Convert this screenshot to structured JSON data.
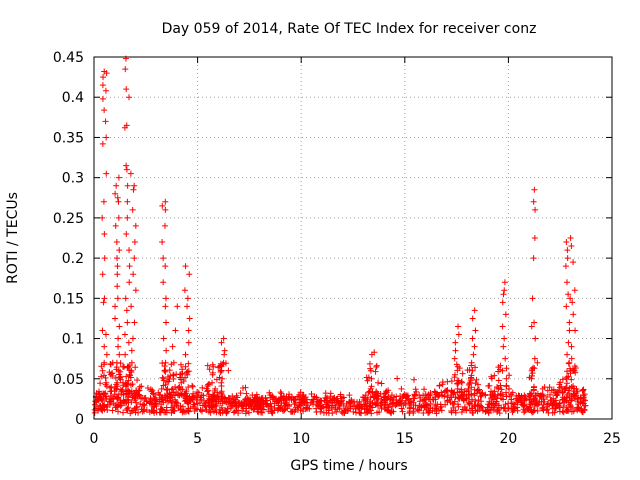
{
  "chart_data": {
    "type": "scatter",
    "title": "Day 059 of 2014, Rate Of TEC Index for receiver conz",
    "xlabel": "GPS time / hours",
    "ylabel": "ROTI / TECUs",
    "xlim": [
      0,
      25
    ],
    "ylim": [
      0,
      0.45
    ],
    "xticks": [
      "0",
      "5",
      "10",
      "15",
      "20",
      "25"
    ],
    "yticks": [
      "0",
      "0.05",
      "0.1",
      "0.15",
      "0.2",
      "0.25",
      "0.3",
      "0.35",
      "0.4",
      "0.45"
    ],
    "grid": true,
    "marker": "+",
    "color": "#ff0000",
    "hours_min": 0.0,
    "hours_max": 23.8,
    "baseline_profile": [
      [
        0.0,
        0.018
      ],
      [
        0.5,
        0.028
      ],
      [
        1.0,
        0.03
      ],
      [
        1.5,
        0.03
      ],
      [
        2.0,
        0.024
      ],
      [
        3.0,
        0.02
      ],
      [
        4.0,
        0.022
      ],
      [
        5.0,
        0.02
      ],
      [
        6.0,
        0.02
      ],
      [
        7.0,
        0.017
      ],
      [
        8.0,
        0.016
      ],
      [
        9.0,
        0.018
      ],
      [
        10.0,
        0.018
      ],
      [
        11.0,
        0.017
      ],
      [
        12.0,
        0.017
      ],
      [
        13.0,
        0.018
      ],
      [
        14.0,
        0.019
      ],
      [
        15.0,
        0.02
      ],
      [
        16.0,
        0.021
      ],
      [
        17.0,
        0.025
      ],
      [
        18.0,
        0.026
      ],
      [
        19.0,
        0.022
      ],
      [
        20.0,
        0.02
      ],
      [
        21.0,
        0.019
      ],
      [
        22.0,
        0.022
      ],
      [
        23.0,
        0.025
      ],
      [
        23.8,
        0.022
      ]
    ],
    "spikes": [
      {
        "x": 0.5,
        "values": [
          0.43,
          0.432,
          0.425,
          0.415,
          0.408,
          0.398,
          0.384,
          0.37,
          0.35,
          0.342,
          0.305,
          0.27,
          0.25,
          0.23,
          0.2,
          0.18,
          0.15,
          0.145,
          0.11,
          0.105,
          0.09,
          0.08,
          0.07,
          0.06
        ]
      },
      {
        "x": 1.1,
        "values": [
          0.3,
          0.29,
          0.28,
          0.275,
          0.27,
          0.25,
          0.24,
          0.22,
          0.21,
          0.2,
          0.19,
          0.18,
          0.165,
          0.15,
          0.14,
          0.125,
          0.115,
          0.1,
          0.09,
          0.08,
          0.07,
          0.06
        ]
      },
      {
        "x": 1.6,
        "values": [
          0.448,
          0.435,
          0.41,
          0.4,
          0.365,
          0.362,
          0.315,
          0.31,
          0.29,
          0.27,
          0.25,
          0.23,
          0.21,
          0.19,
          0.17,
          0.15,
          0.135,
          0.12,
          0.105,
          0.095,
          0.08,
          0.065
        ]
      },
      {
        "x": 1.9,
        "values": [
          0.305,
          0.29,
          0.285,
          0.26,
          0.24,
          0.22,
          0.2,
          0.18,
          0.16,
          0.14,
          0.12,
          0.1,
          0.085,
          0.07,
          0.06
        ]
      },
      {
        "x": 3.4,
        "values": [
          0.27,
          0.265,
          0.26,
          0.24,
          0.22,
          0.2,
          0.19,
          0.17,
          0.15,
          0.14,
          0.12,
          0.1,
          0.085,
          0.07,
          0.06,
          0.05
        ]
      },
      {
        "x": 4.5,
        "values": [
          0.19,
          0.18,
          0.16,
          0.15,
          0.14,
          0.125,
          0.11,
          0.095,
          0.08,
          0.065,
          0.055
        ]
      },
      {
        "x": 3.9,
        "values": [
          0.14,
          0.11,
          0.09,
          0.07,
          0.055
        ]
      },
      {
        "x": 6.2,
        "values": [
          0.1,
          0.095,
          0.085,
          0.08,
          0.07,
          0.06,
          0.05,
          0.045
        ]
      },
      {
        "x": 5.7,
        "values": [
          0.065,
          0.055,
          0.045
        ]
      },
      {
        "x": 13.4,
        "values": [
          0.083,
          0.08,
          0.06,
          0.05
        ]
      },
      {
        "x": 17.5,
        "values": [
          0.115,
          0.105,
          0.095,
          0.085,
          0.075,
          0.065,
          0.055,
          0.045
        ]
      },
      {
        "x": 18.3,
        "values": [
          0.135,
          0.125,
          0.11,
          0.1,
          0.09,
          0.08,
          0.07,
          0.06,
          0.05
        ]
      },
      {
        "x": 19.8,
        "values": [
          0.17,
          0.16,
          0.155,
          0.145,
          0.13,
          0.115,
          0.1,
          0.09,
          0.075,
          0.06,
          0.05
        ]
      },
      {
        "x": 21.2,
        "values": [
          0.285,
          0.27,
          0.26,
          0.225,
          0.2,
          0.15,
          0.12,
          0.115,
          0.1,
          0.075,
          0.06,
          0.05
        ]
      },
      {
        "x": 22.9,
        "values": [
          0.225,
          0.22,
          0.21,
          0.2,
          0.19,
          0.17,
          0.155,
          0.15,
          0.14,
          0.12,
          0.11,
          0.095,
          0.08,
          0.07,
          0.06,
          0.05
        ]
      },
      {
        "x": 23.1,
        "values": [
          0.215,
          0.195,
          0.16,
          0.145,
          0.13,
          0.11,
          0.09,
          0.075,
          0.06
        ]
      }
    ]
  }
}
